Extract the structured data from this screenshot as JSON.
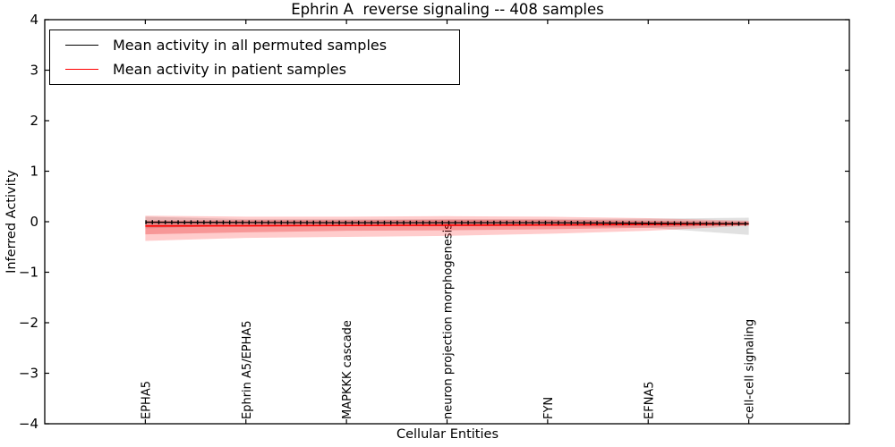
{
  "title": "Ephrin A  reverse signaling -- 408 samples",
  "axes": {
    "xlabel": "Cellular Entities",
    "ylabel": "Inferred Activity"
  },
  "legend": {
    "items": [
      {
        "label": "Mean activity in all permuted samples",
        "color": "#000000"
      },
      {
        "label": "Mean activity in patient samples",
        "color": "#ff0000"
      }
    ],
    "position": "upper left"
  },
  "chart_data": {
    "type": "line",
    "title": "Ephrin A  reverse signaling -- 408 samples",
    "xlabel": "Cellular Entities",
    "ylabel": "Inferred Activity",
    "xlim": [
      -1,
      7
    ],
    "ylim": [
      -4,
      4
    ],
    "grid": false,
    "legend_position": "upper left",
    "yticks": [
      {
        "v": 4,
        "label": "4"
      },
      {
        "v": 3,
        "label": "3"
      },
      {
        "v": 2,
        "label": "2"
      },
      {
        "v": 1,
        "label": "1"
      },
      {
        "v": 0,
        "label": "0"
      },
      {
        "v": -1,
        "label": "−1"
      },
      {
        "v": -2,
        "label": "−2"
      },
      {
        "v": -3,
        "label": "−3"
      },
      {
        "v": -4,
        "label": "−4"
      }
    ],
    "categories": [
      "EPHA5",
      "Ephrin A5/EPHA5",
      "MAPKKK cascade",
      "neuron projection morphogenesis",
      "FYN",
      "EFNA5",
      "cell-cell signaling"
    ],
    "x": [
      0,
      1,
      2,
      3,
      4,
      5,
      6
    ],
    "series": [
      {
        "name": "Mean activity in all permuted samples",
        "color": "#000000",
        "marker": "tick",
        "values": [
          -0.01,
          -0.015,
          -0.02,
          -0.02,
          -0.02,
          -0.03,
          -0.04
        ],
        "band": {
          "color": "rgba(90,90,90,0.18)",
          "top": [
            0.1,
            0.05,
            0.05,
            0.05,
            0.05,
            0.06,
            0.08
          ],
          "bottom": [
            -0.13,
            -0.08,
            -0.08,
            -0.09,
            -0.08,
            -0.12,
            -0.26
          ]
        }
      },
      {
        "name": "Mean activity in patient samples",
        "color": "#ff0000",
        "values": [
          -0.085,
          -0.08,
          -0.075,
          -0.07,
          -0.065,
          -0.055,
          -0.045
        ],
        "band": {
          "color": "rgba(255,0,0,0.20)",
          "top": [
            0.12,
            0.1,
            0.1,
            0.11,
            0.1,
            0.07,
            0.02
          ],
          "bottom": [
            -0.38,
            -0.32,
            -0.3,
            -0.28,
            -0.24,
            -0.18,
            -0.08
          ]
        },
        "band_inner": {
          "color": "rgba(225,0,0,0.26)",
          "top": [
            0.02,
            0.03,
            0.03,
            0.04,
            0.04,
            0.02,
            0.0
          ],
          "bottom": [
            -0.25,
            -0.21,
            -0.18,
            -0.17,
            -0.15,
            -0.12,
            -0.06
          ]
        }
      }
    ]
  }
}
